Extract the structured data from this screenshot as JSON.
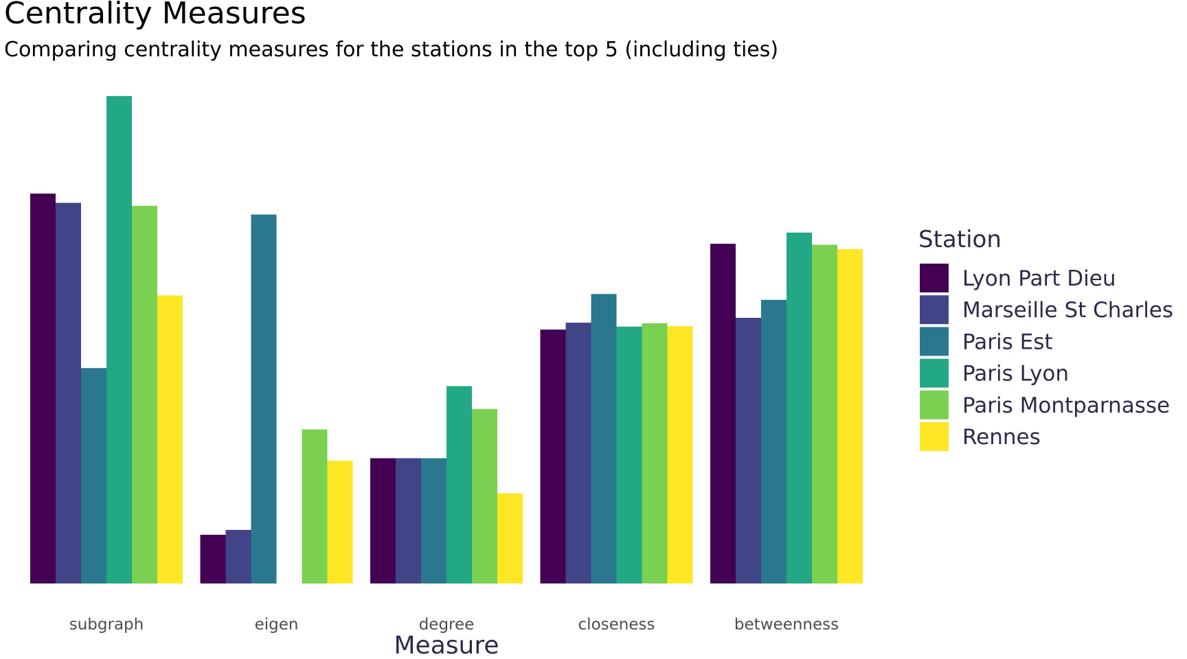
{
  "chart_data": {
    "type": "bar",
    "title": "Centrality Measures",
    "subtitle": "Comparing centrality measures for the stations in the top 5 (including ties)",
    "xlabel": "Measure",
    "ylabel": "",
    "categories": [
      "subgraph",
      "eigen",
      "degree",
      "closeness",
      "betweenness"
    ],
    "ylim": [
      0,
      1
    ],
    "grid": false,
    "y_axis_labels_shown": false,
    "legend": {
      "title": "Station",
      "placement": "right"
    },
    "series": [
      {
        "name": "Lyon Part Dieu",
        "color": "#440154",
        "values": [
          0.8,
          0.1,
          0.257,
          0.521,
          0.697
        ]
      },
      {
        "name": "Marseille St Charles",
        "color": "#414487",
        "values": [
          0.781,
          0.11,
          0.257,
          0.535,
          0.545
        ]
      },
      {
        "name": "Paris Est",
        "color": "#2a788e",
        "values": [
          0.442,
          0.757,
          0.257,
          0.594,
          0.582
        ]
      },
      {
        "name": "Paris Lyon",
        "color": "#22a884",
        "values": [
          1.0,
          0.0,
          0.405,
          0.527,
          0.72
        ]
      },
      {
        "name": "Paris Montparnasse",
        "color": "#7ad151",
        "values": [
          0.775,
          0.316,
          0.358,
          0.534,
          0.695
        ]
      },
      {
        "name": "Rennes",
        "color": "#fde725",
        "values": [
          0.591,
          0.252,
          0.185,
          0.528,
          0.686
        ]
      }
    ]
  }
}
